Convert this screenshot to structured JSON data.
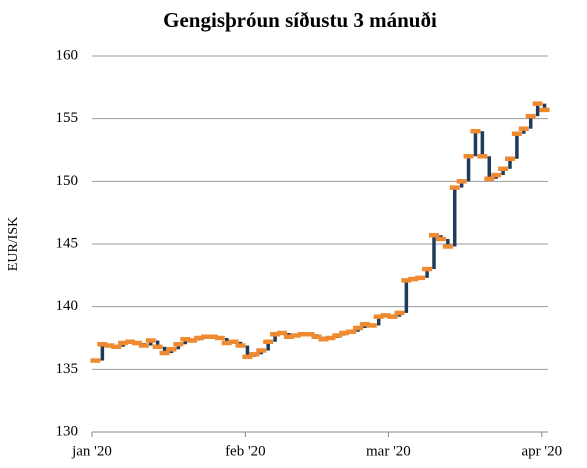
{
  "chart_data": {
    "type": "step",
    "title": "Gengisþróun síðustu 3 mánuði",
    "ylabel": "EUR/ISK",
    "values": [
      135.7,
      137.0,
      136.9,
      136.8,
      137.1,
      137.2,
      137.1,
      136.9,
      137.3,
      136.8,
      136.3,
      136.6,
      137.0,
      137.4,
      137.3,
      137.5,
      137.6,
      137.6,
      137.5,
      137.1,
      137.2,
      136.9,
      136.0,
      136.2,
      136.5,
      137.2,
      137.8,
      137.9,
      137.6,
      137.7,
      137.8,
      137.8,
      137.6,
      137.4,
      137.5,
      137.7,
      137.9,
      138.0,
      138.3,
      138.6,
      138.5,
      139.2,
      139.3,
      139.2,
      139.5,
      142.1,
      142.2,
      142.3,
      143.0,
      145.7,
      145.4,
      144.8,
      149.5,
      150.0,
      152.0,
      154.0,
      152.0,
      150.2,
      150.5,
      151.0,
      151.8,
      153.8,
      154.2,
      155.2,
      156.2,
      155.7
    ],
    "colors": {
      "rise": "#1f3b5c",
      "level": "#f08a30"
    },
    "xlim": [
      0,
      66
    ],
    "xticks": [
      {
        "value": 0,
        "label": "jan '20"
      },
      {
        "value": 22.2,
        "label": "feb '20"
      },
      {
        "value": 42.9,
        "label": "mar '20"
      },
      {
        "value": 65.1,
        "label": "apr '20"
      }
    ],
    "ylim": [
      130,
      160
    ],
    "yticks": [
      130,
      135,
      140,
      145,
      150,
      155,
      160
    ],
    "grid": true
  }
}
